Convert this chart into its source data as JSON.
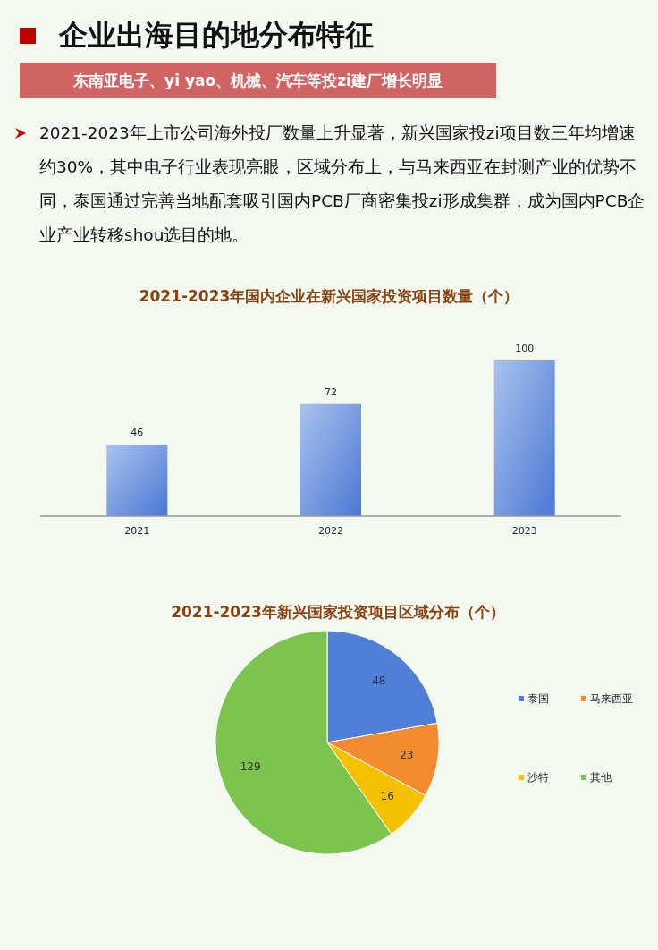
{
  "chart_data": [
    {
      "type": "other",
      "title": "企业出海目的地分布特征",
      "subtitle": "东南亚电子、yi yao、机械、汽车等投zi建厂增长明显",
      "annotations": [
        "2021-2023年上市公司海外投厂数量上升显著，新兴国家投zi项目数三年均增速约30%，其中电子行业表现亮眼，区域分布上，与马来西亚在封测产业的优势不同，泰国通过完善当地配套吸引国内PCB厂商密集投zi形成集群，成为国内PCB企业产业转移shou选目的地。"
      ]
    },
    {
      "type": "bar",
      "title": "2021-2023年国内企业在新兴国家投资项目数量（个）",
      "categories": [
        "2021",
        "2022",
        "2023"
      ],
      "values": [
        46,
        72,
        100
      ],
      "color": "#4a78d4",
      "data_labels": true
    },
    {
      "type": "pie",
      "title": "2021-2023年新兴国家投资项目区域分布（个）",
      "categories": [
        "泰国",
        "马来西亚",
        "沙特",
        "其他"
      ],
      "values": [
        48,
        23,
        16,
        129
      ],
      "colors": [
        "#4f7fd6",
        "#f28a30",
        "#f5c000",
        "#7cc34f"
      ],
      "data_labels": true,
      "legend": "right"
    }
  ]
}
